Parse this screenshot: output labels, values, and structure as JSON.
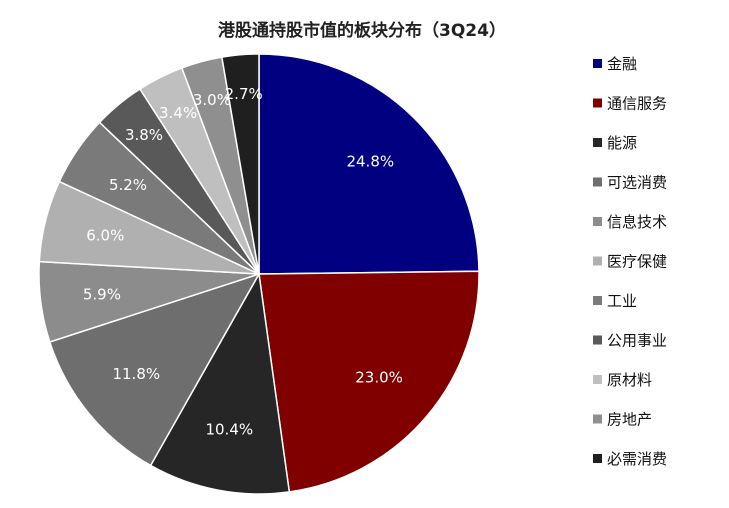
{
  "chart_data": {
    "type": "pie",
    "title": "港股通持股市值的板块分布（3Q24）",
    "legend_position": "right",
    "slices": [
      {
        "name": "金融",
        "value": 24.8,
        "label": "24.8%",
        "color": "#000080"
      },
      {
        "name": "通信服务",
        "value": 23.0,
        "label": "23.0%",
        "color": "#800000"
      },
      {
        "name": "能源",
        "value": 10.4,
        "label": "10.4%",
        "color": "#262626"
      },
      {
        "name": "可选消费",
        "value": 11.8,
        "label": "11.8%",
        "color": "#6e6e6e"
      },
      {
        "name": "信息技术",
        "value": 5.9,
        "label": "5.9%",
        "color": "#8c8c8c"
      },
      {
        "name": "医疗保健",
        "value": 6.0,
        "label": "6.0%",
        "color": "#b0b0b0"
      },
      {
        "name": "工业",
        "value": 5.2,
        "label": "5.2%",
        "color": "#7a7a7a"
      },
      {
        "name": "公用事业",
        "value": 3.8,
        "label": "3.8%",
        "color": "#595959"
      },
      {
        "name": "原材料",
        "value": 3.4,
        "label": "3.4%",
        "color": "#bfbfbf"
      },
      {
        "name": "房地产",
        "value": 3.0,
        "label": "3.0%",
        "color": "#8f8f8f"
      },
      {
        "name": "必需消费",
        "value": 2.7,
        "label": "2.7%",
        "color": "#1f1f1f"
      }
    ]
  }
}
